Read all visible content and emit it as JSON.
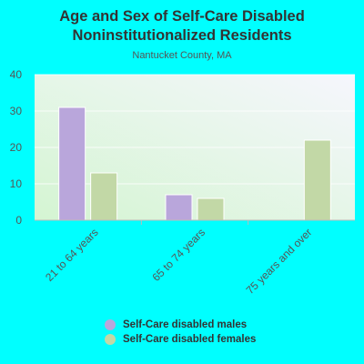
{
  "chart_data": {
    "type": "bar",
    "title": "Age and Sex of Self-Care Disabled Noninstitutionalized Residents",
    "subtitle": "Nantucket County, MA",
    "categories": [
      "21 to 64 years",
      "65 to 74 years",
      "75 years and over"
    ],
    "series": [
      {
        "name": "Self-Care disabled males",
        "values": [
          31,
          7,
          0
        ],
        "color": "#b9a6db"
      },
      {
        "name": "Self-Care disabled females",
        "values": [
          13,
          6,
          22
        ],
        "color": "#c2d8a6"
      }
    ],
    "yticks": [
      "0",
      "10",
      "20",
      "30",
      "40"
    ],
    "ylim": [
      0,
      40
    ],
    "grid": true,
    "legend_position": "bottom"
  }
}
